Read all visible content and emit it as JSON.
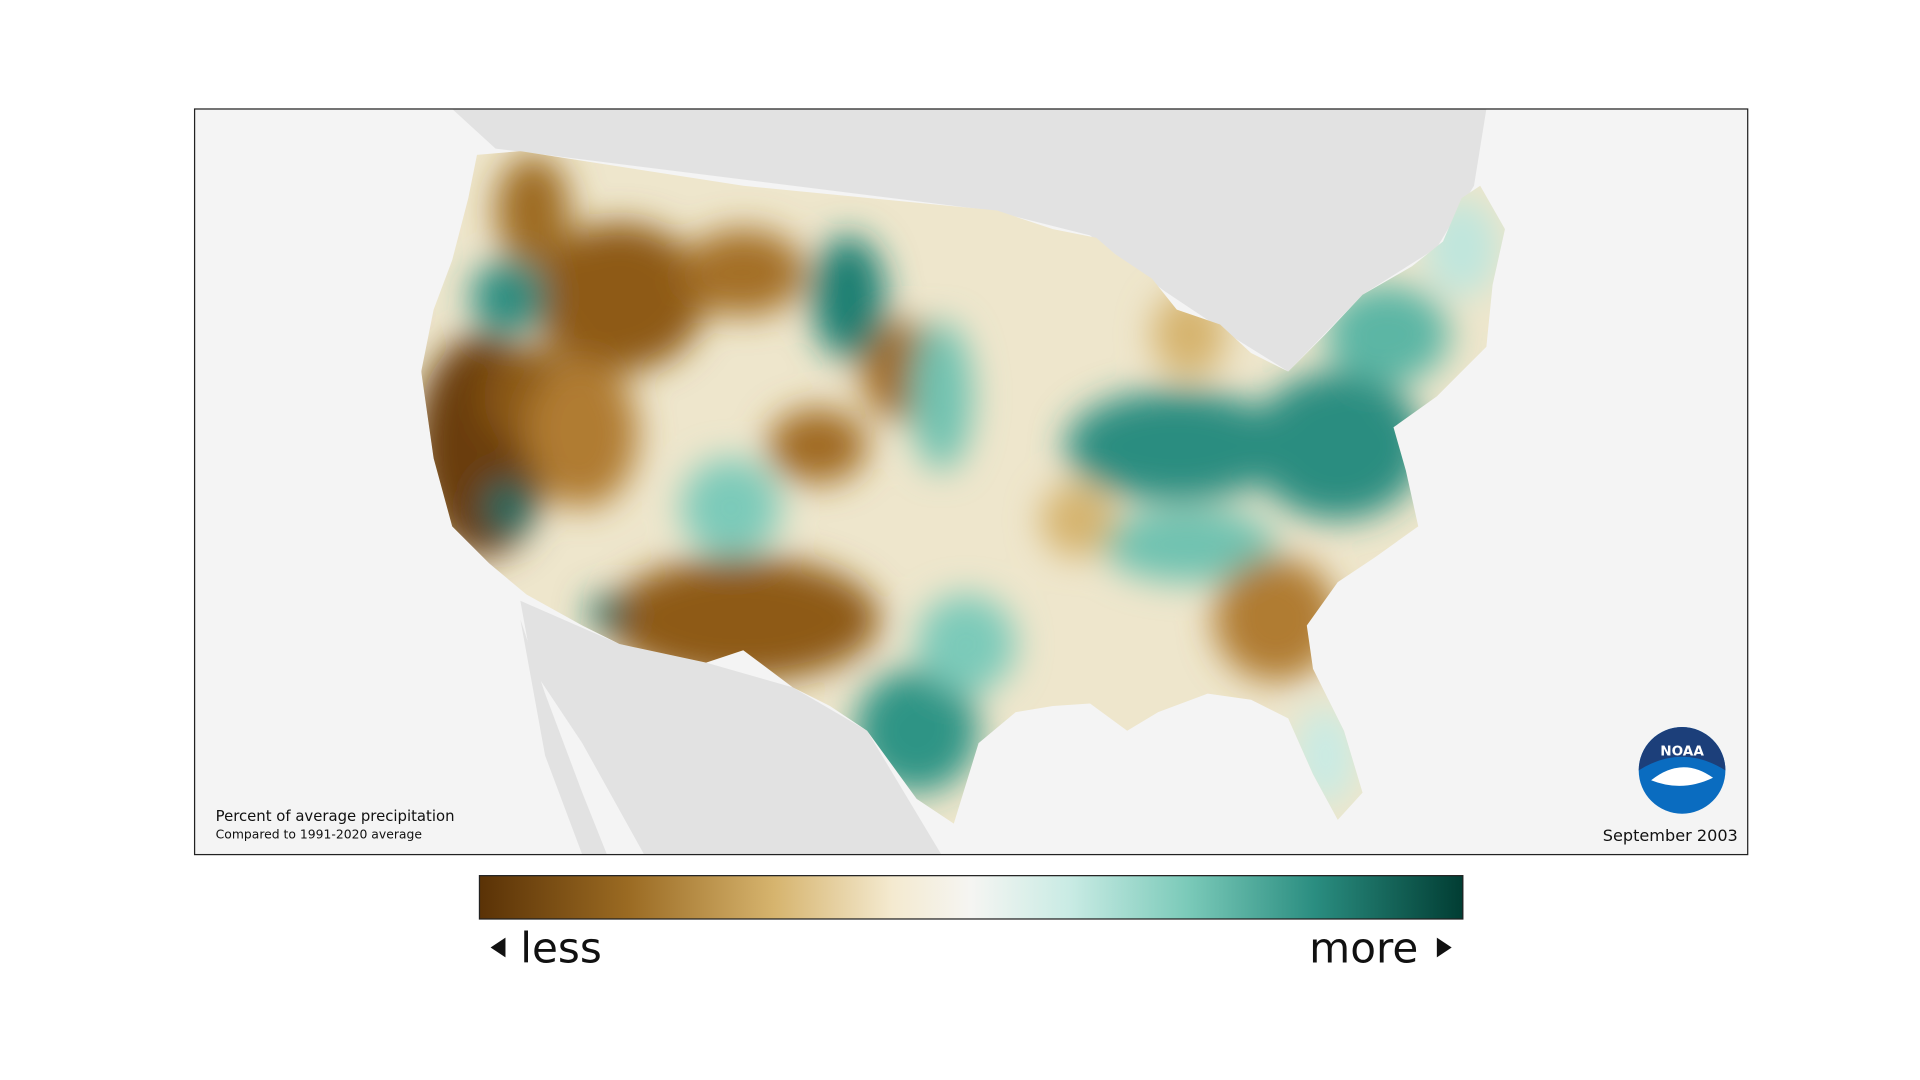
{
  "map": {
    "title": "Percent of average precipitation",
    "subtitle": "Compared to 1991-2020 average",
    "date": "September 2003",
    "logo": "NOAA"
  },
  "legend": {
    "low": "less",
    "high": "more"
  }
}
